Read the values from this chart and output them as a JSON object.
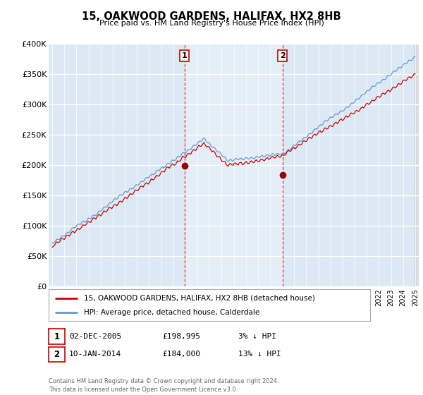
{
  "title": "15, OAKWOOD GARDENS, HALIFAX, HX2 8HB",
  "subtitle": "Price paid vs. HM Land Registry's House Price Index (HPI)",
  "ylabel_ticks": [
    "£0",
    "£50K",
    "£100K",
    "£150K",
    "£200K",
    "£250K",
    "£300K",
    "£350K",
    "£400K"
  ],
  "ytick_values": [
    0,
    50000,
    100000,
    150000,
    200000,
    250000,
    300000,
    350000,
    400000
  ],
  "ylim": [
    0,
    400000
  ],
  "xlim_start": 1994.7,
  "xlim_end": 2025.3,
  "hpi_color": "#6699cc",
  "price_color": "#cc0000",
  "marker_color": "#990000",
  "sale1_x": 2005.92,
  "sale1_y": 198995,
  "sale2_x": 2014.04,
  "sale2_y": 184000,
  "shade_color": "#d8e8f5",
  "legend_line1": "15, OAKWOOD GARDENS, HALIFAX, HX2 8HB (detached house)",
  "legend_line2": "HPI: Average price, detached house, Calderdale",
  "table_row1": [
    "1",
    "02-DEC-2005",
    "£198,995",
    "3% ↓ HPI"
  ],
  "table_row2": [
    "2",
    "10-JAN-2014",
    "£184,000",
    "13% ↓ HPI"
  ],
  "footnote": "Contains HM Land Registry data © Crown copyright and database right 2024.\nThis data is licensed under the Open Government Licence v3.0.",
  "fig_bg_color": "#ffffff",
  "plot_bg_color": "#dce9f5"
}
